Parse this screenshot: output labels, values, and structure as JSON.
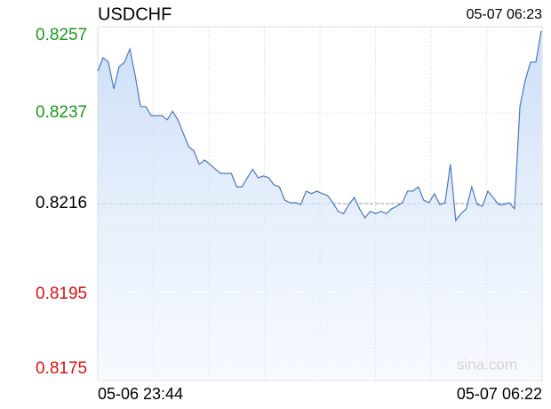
{
  "chart_data": {
    "type": "line",
    "title": "USDCHF",
    "timestamp": "05-07 06:23",
    "watermark": "sina.com",
    "color": "#4a78c2",
    "ylim": [
      0.8175,
      0.8257
    ],
    "yticks": [
      0.8175,
      0.8195,
      0.8216,
      0.8237,
      0.8257
    ],
    "reference_line": 0.8216,
    "grid": true,
    "categories": [
      "05-06 23:44",
      null,
      null,
      null,
      null,
      null,
      null,
      null,
      null,
      null,
      null,
      null,
      null,
      null,
      null,
      null,
      null,
      null,
      null,
      null,
      null,
      null,
      null,
      null,
      null,
      null,
      null,
      null,
      null,
      null,
      null,
      null,
      null,
      null,
      null,
      null,
      null,
      null,
      null,
      null,
      null,
      null,
      null,
      null,
      null,
      null,
      null,
      null,
      null,
      null,
      null,
      null,
      null,
      null,
      null,
      null,
      null,
      null,
      null,
      null,
      null,
      null,
      null,
      null,
      null,
      null,
      null,
      null,
      null,
      null,
      null,
      null,
      null,
      null,
      null,
      null,
      null,
      null,
      null,
      null,
      null,
      null,
      null,
      "05-07 06:22"
    ],
    "values": [
      0.82467,
      0.82498,
      0.82488,
      0.82426,
      0.82477,
      0.82488,
      0.82518,
      0.82457,
      0.82385,
      0.82385,
      0.82364,
      0.82364,
      0.82364,
      0.82354,
      0.82374,
      0.82354,
      0.82323,
      0.82292,
      0.82282,
      0.82251,
      0.82261,
      0.82251,
      0.8224,
      0.8223,
      0.8223,
      0.8223,
      0.82199,
      0.82199,
      0.8222,
      0.8224,
      0.8222,
      0.82224,
      0.8222,
      0.82203,
      0.82199,
      0.82168,
      0.82162,
      0.82162,
      0.82158,
      0.82189,
      0.82183,
      0.82189,
      0.82183,
      0.82179,
      0.82162,
      0.82142,
      0.82137,
      0.82158,
      0.82174,
      0.82148,
      0.82127,
      0.82142,
      0.82137,
      0.82142,
      0.82137,
      0.82148,
      0.82154,
      0.82162,
      0.82189,
      0.82189,
      0.82199,
      0.82168,
      0.82162,
      0.82183,
      0.82158,
      0.82162,
      0.82251,
      0.82121,
      0.82137,
      0.82148,
      0.82199,
      0.82158,
      0.82154,
      0.82189,
      0.82174,
      0.82158,
      0.82158,
      0.82162,
      0.82148,
      0.82385,
      0.82446,
      0.82488,
      0.82488,
      0.8256
    ]
  }
}
